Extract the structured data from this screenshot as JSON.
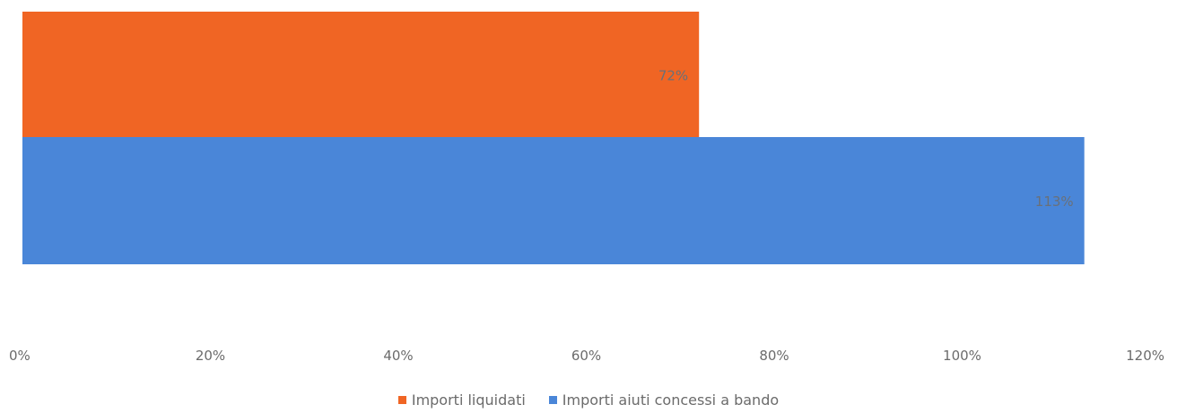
{
  "chart_data": {
    "type": "bar",
    "orientation": "horizontal",
    "series": [
      {
        "name": "Importi liquidati",
        "value": 0.72,
        "label": "72%",
        "color": "#f06524"
      },
      {
        "name": "Importi aiuti concessi a bando",
        "value": 1.13,
        "label": "113%",
        "color": "#4a86d8"
      }
    ],
    "xlim": [
      0,
      1.2
    ],
    "x_ticks": [
      {
        "value": 0,
        "label": "0%"
      },
      {
        "value": 0.2,
        "label": "20%"
      },
      {
        "value": 0.4,
        "label": "40%"
      },
      {
        "value": 0.6,
        "label": "60%"
      },
      {
        "value": 0.8,
        "label": "80%"
      },
      {
        "value": 1.0,
        "label": "100%"
      },
      {
        "value": 1.2,
        "label": "120%"
      }
    ],
    "grid": false,
    "legend_position": "bottom"
  }
}
